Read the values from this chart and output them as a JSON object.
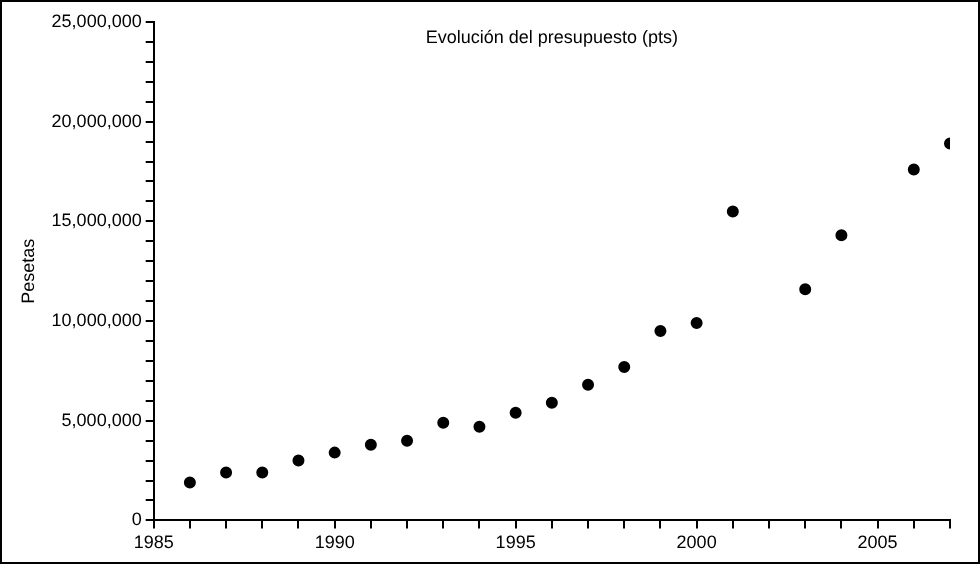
{
  "chart_data": {
    "type": "scatter",
    "title": "Evolución del presupuesto (pts)",
    "ylabel": "Pesetas",
    "x": [
      1986,
      1987,
      1988,
      1989,
      1990,
      1991,
      1992,
      1993,
      1994,
      1995,
      1996,
      1997,
      1998,
      1999,
      2000,
      2001,
      2003,
      2004,
      2006,
      2007
    ],
    "series": [
      {
        "color": "#000000",
        "values": [
          1900000,
          2400000,
          2400000,
          3000000,
          3400000,
          3800000,
          4000000,
          4900000,
          4700000,
          5400000,
          5900000,
          6800000,
          7700000,
          9500000,
          9900000,
          15500000,
          11600000,
          14300000,
          17600000,
          18900000
        ]
      }
    ],
    "xlim": [
      1985,
      2007
    ],
    "xticks": [
      1985,
      {
        "value": 1986,
        "label": null
      },
      {
        "value": 1987,
        "label": null
      },
      {
        "value": 1988,
        "label": null
      },
      {
        "value": 1989,
        "label": null
      },
      1990,
      {
        "value": 1991,
        "label": null
      },
      {
        "value": 1992,
        "label": null
      },
      {
        "value": 1993,
        "label": null
      },
      {
        "value": 1994,
        "label": null
      },
      1995,
      {
        "value": 1996,
        "label": null
      },
      {
        "value": 1997,
        "label": null
      },
      {
        "value": 1998,
        "label": null
      },
      {
        "value": 1999,
        "label": null
      },
      2000,
      {
        "value": 2001,
        "label": null
      },
      {
        "value": 2002,
        "label": null
      },
      {
        "value": 2003,
        "label": null
      },
      {
        "value": 2004,
        "label": null
      },
      2005,
      {
        "value": 2006,
        "label": null
      },
      {
        "value": 2007,
        "label": null
      }
    ],
    "ylim": [
      0,
      25000000
    ],
    "yticks": [
      0,
      {
        "value": 1000000,
        "label": null
      },
      {
        "value": 2000000,
        "label": null
      },
      {
        "value": 3000000,
        "label": null
      },
      {
        "value": 4000000,
        "label": null
      },
      {
        "value": 5000000,
        "label": "5,000,000"
      },
      {
        "value": 6000000,
        "label": null
      },
      {
        "value": 7000000,
        "label": null
      },
      {
        "value": 8000000,
        "label": null
      },
      {
        "value": 9000000,
        "label": null
      },
      {
        "value": 10000000,
        "label": "10,000,000"
      },
      {
        "value": 11000000,
        "label": null
      },
      {
        "value": 12000000,
        "label": null
      },
      {
        "value": 13000000,
        "label": null
      },
      {
        "value": 14000000,
        "label": null
      },
      {
        "value": 15000000,
        "label": "15,000,000"
      },
      {
        "value": 16000000,
        "label": null
      },
      {
        "value": 17000000,
        "label": null
      },
      {
        "value": 18000000,
        "label": null
      },
      {
        "value": 19000000,
        "label": null
      },
      {
        "value": 20000000,
        "label": "20,000,000"
      },
      {
        "value": 21000000,
        "label": null
      },
      {
        "value": 22000000,
        "label": null
      },
      {
        "value": 23000000,
        "label": null
      },
      {
        "value": 24000000,
        "label": null
      },
      {
        "value": 25000000,
        "label": "25,000,000"
      }
    ],
    "grid": false,
    "legend": false,
    "marker": "circle"
  }
}
